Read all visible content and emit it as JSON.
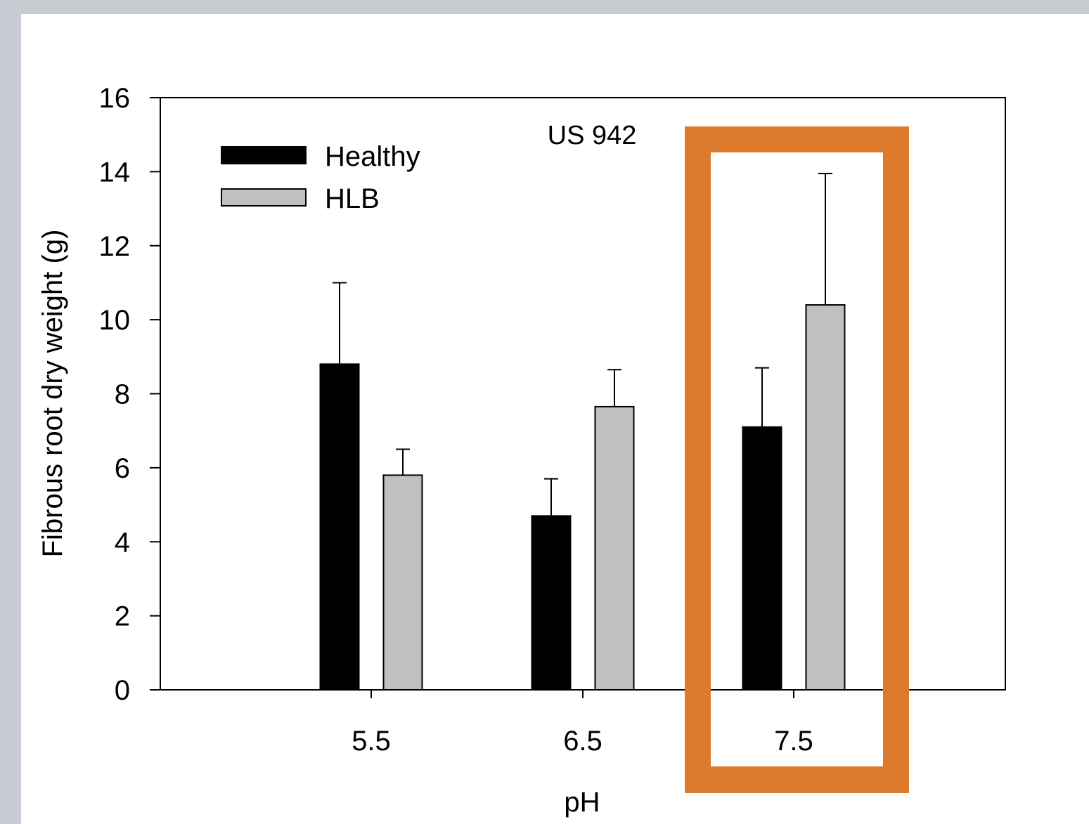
{
  "chart_data": {
    "type": "bar",
    "title": "US 942",
    "xlabel": "pH",
    "ylabel": "Fibrous root dry weight (g)",
    "categories": [
      "5.5",
      "6.5",
      "7.5"
    ],
    "series": [
      {
        "name": "Healthy",
        "values": [
          8.8,
          4.7,
          7.1
        ],
        "errors": [
          2.2,
          1.0,
          1.6
        ],
        "color": "#000000"
      },
      {
        "name": "HLB",
        "values": [
          5.8,
          7.65,
          10.4
        ],
        "errors": [
          0.7,
          1.0,
          3.55
        ],
        "color": "#c0c0c0"
      }
    ],
    "ylim": [
      0,
      16
    ],
    "yticks": [
      "0",
      "2",
      "4",
      "6",
      "8",
      "10",
      "12",
      "14",
      "16"
    ],
    "legend_position": "top-left",
    "grid": false,
    "highlight": {
      "category": "7.5",
      "color": "#dd7a2c"
    }
  }
}
